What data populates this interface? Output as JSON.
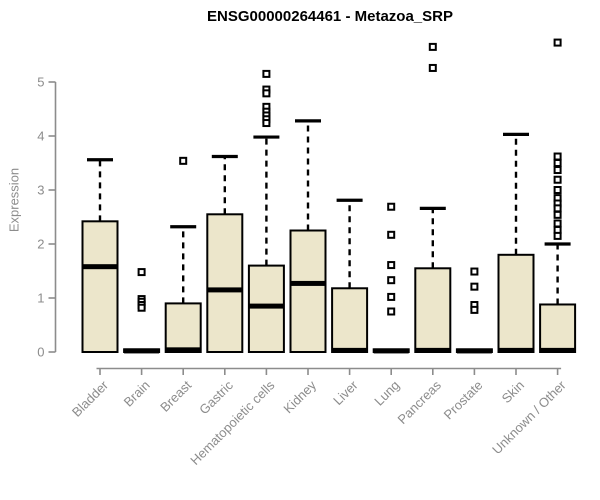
{
  "colors": {
    "box_fill": "#ece6cb",
    "box_border": "#000000",
    "median": "#000000",
    "whisker": "#000000",
    "axis": "#8c8c8c",
    "tick_text": "#8c8c8c",
    "title_text": "#000000",
    "background": "#ffffff"
  },
  "chart_data": {
    "type": "boxplot",
    "title": "ENSG00000264461 - Metazoa_SRP",
    "xlabel": "",
    "ylabel": "Expression",
    "yticks": [
      0,
      1,
      2,
      3,
      4,
      5
    ],
    "ylim": [
      0,
      5.8
    ],
    "grid": false,
    "categories": [
      "Bladder",
      "Brain",
      "Breast",
      "Gastric",
      "Hematopoietic cells",
      "Kidney",
      "Liver",
      "Lung",
      "Pancreas",
      "Prostate",
      "Skin",
      "Unknown / Other"
    ],
    "boxes": [
      {
        "category": "Bladder",
        "q1": 0,
        "median": 1.58,
        "q3": 2.42,
        "whisker_low": 0,
        "whisker_high": 3.56,
        "outliers": []
      },
      {
        "category": "Brain",
        "q1": 0,
        "median": 0.02,
        "q3": 0.05,
        "whisker_low": 0,
        "whisker_high": 0.05,
        "outliers": [
          1.48,
          0.98,
          0.93,
          0.87,
          0.82
        ]
      },
      {
        "category": "Breast",
        "q1": 0,
        "median": 0.04,
        "q3": 0.9,
        "whisker_low": 0,
        "whisker_high": 2.32,
        "outliers": [
          3.54
        ]
      },
      {
        "category": "Gastric",
        "q1": 0,
        "median": 1.15,
        "q3": 2.55,
        "whisker_low": 0,
        "whisker_high": 3.62,
        "outliers": []
      },
      {
        "category": "Hematopoietic cells",
        "q1": 0,
        "median": 0.85,
        "q3": 1.6,
        "whisker_low": 0,
        "whisker_high": 3.98,
        "outliers": [
          5.15,
          4.86,
          4.79,
          4.54,
          4.45,
          4.38,
          4.31,
          4.24
        ]
      },
      {
        "category": "Kidney",
        "q1": 0,
        "median": 1.27,
        "q3": 2.25,
        "whisker_low": 0,
        "whisker_high": 4.28,
        "outliers": []
      },
      {
        "category": "Liver",
        "q1": 0,
        "median": 0.03,
        "q3": 1.18,
        "whisker_low": 0,
        "whisker_high": 2.81,
        "outliers": []
      },
      {
        "category": "Lung",
        "q1": 0,
        "median": 0.02,
        "q3": 0.05,
        "whisker_low": 0,
        "whisker_high": 0.05,
        "outliers": [
          2.69,
          2.17,
          1.61,
          1.33,
          1.02,
          0.75
        ]
      },
      {
        "category": "Pancreas",
        "q1": 0,
        "median": 0.03,
        "q3": 1.55,
        "whisker_low": 0,
        "whisker_high": 2.66,
        "outliers": [
          5.65,
          5.26
        ]
      },
      {
        "category": "Prostate",
        "q1": 0,
        "median": 0.02,
        "q3": 0.05,
        "whisker_low": 0,
        "whisker_high": 0.05,
        "outliers": [
          1.49,
          1.21,
          0.87,
          0.78
        ]
      },
      {
        "category": "Skin",
        "q1": 0,
        "median": 0.03,
        "q3": 1.8,
        "whisker_low": 0,
        "whisker_high": 4.03,
        "outliers": []
      },
      {
        "category": "Unknown / Other",
        "q1": 0,
        "median": 0.03,
        "q3": 0.88,
        "whisker_low": 0,
        "whisker_high": 2.0,
        "outliers": [
          5.73,
          3.62,
          3.5,
          3.37,
          3.19,
          3.0,
          2.85,
          2.75,
          2.66,
          2.54,
          2.38,
          2.26,
          2.15
        ]
      }
    ]
  }
}
